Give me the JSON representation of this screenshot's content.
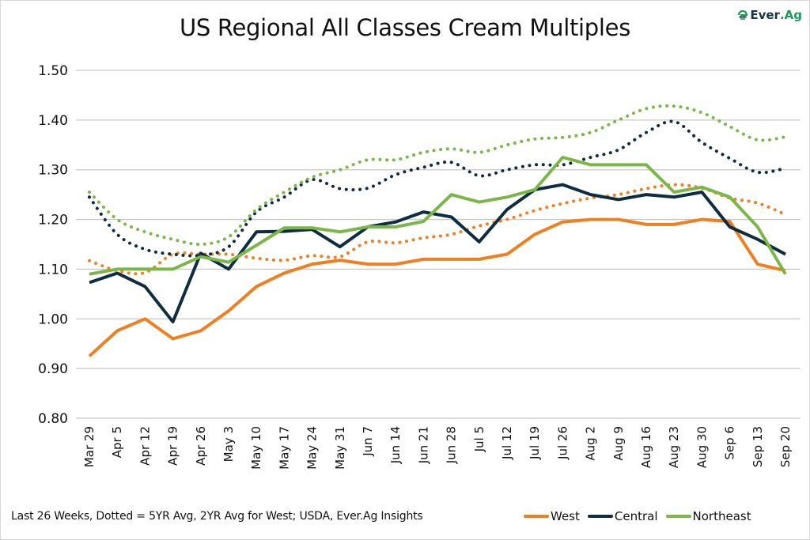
{
  "header": {
    "title": "US Regional All Classes Cream Multiples",
    "logo": {
      "prefix": "Ever",
      "suffix": ".Ag",
      "icon": "ever-ag-leaf-icon"
    }
  },
  "footer": {
    "note": "Last 26 Weeks, Dotted = 5YR Avg, 2YR Avg for West; USDA, Ever.Ag Insights"
  },
  "colors": {
    "west": "#F07F22",
    "central": "#0F2D40",
    "northeast": "#7AB648",
    "grid": "#c8c8c8",
    "logo_dark": "#1a3446",
    "logo_green": "#1e9a5a"
  },
  "chart_data": {
    "type": "line",
    "title": "US Regional All Classes Cream Multiples",
    "xlabel": "",
    "ylabel": "",
    "ylim": [
      0.8,
      1.5
    ],
    "yticks": [
      "1.50",
      "1.40",
      "1.30",
      "1.20",
      "1.10",
      "1.00",
      "0.90",
      "0.80"
    ],
    "ytick_values": [
      1.5,
      1.4,
      1.3,
      1.2,
      1.1,
      1.0,
      0.9,
      0.8
    ],
    "grid": true,
    "legend_position": "bottom-right",
    "categories": [
      "Mar 29",
      "Apr 5",
      "Apr 12",
      "Apr 19",
      "Apr 26",
      "May 3",
      "May 10",
      "May 17",
      "May 24",
      "May 31",
      "Jun 7",
      "Jun 14",
      "Jun 21",
      "Jun 28",
      "Jul 5",
      "Jul 12",
      "Jul 19",
      "Jul 26",
      "Aug 2",
      "Aug 9",
      "Aug 16",
      "Aug 23",
      "Aug 30",
      "Sep 6",
      "Sep 13",
      "Sep 20"
    ],
    "series": [
      {
        "name": "West",
        "key": "west",
        "style": "solid",
        "in_legend": true,
        "values": [
          0.925,
          0.976,
          1.0,
          0.96,
          0.976,
          1.016,
          1.065,
          1.092,
          1.11,
          1.118,
          1.11,
          1.11,
          1.12,
          1.12,
          1.12,
          1.13,
          1.17,
          1.195,
          1.2,
          1.2,
          1.19,
          1.19,
          1.2,
          1.196,
          1.11,
          1.097
        ]
      },
      {
        "name": "Central",
        "key": "central",
        "style": "solid",
        "in_legend": true,
        "values": [
          1.073,
          1.092,
          1.065,
          0.994,
          1.132,
          1.1,
          1.175,
          1.176,
          1.18,
          1.145,
          1.185,
          1.195,
          1.215,
          1.205,
          1.155,
          1.22,
          1.26,
          1.27,
          1.25,
          1.24,
          1.25,
          1.245,
          1.255,
          1.185,
          1.16,
          1.13
        ]
      },
      {
        "name": "Northeast",
        "key": "northeast",
        "style": "solid",
        "in_legend": true,
        "values": [
          1.09,
          1.1,
          1.1,
          1.1,
          1.125,
          1.114,
          1.148,
          1.183,
          1.183,
          1.175,
          1.185,
          1.185,
          1.196,
          1.25,
          1.235,
          1.245,
          1.26,
          1.325,
          1.31,
          1.31,
          1.31,
          1.255,
          1.265,
          1.245,
          1.185,
          1.09
        ]
      },
      {
        "name": "West Avg (2YR)",
        "key": "west",
        "style": "dotted",
        "in_legend": false,
        "values": [
          1.117,
          1.097,
          1.093,
          1.13,
          1.13,
          1.13,
          1.122,
          1.118,
          1.127,
          1.125,
          1.155,
          1.153,
          1.163,
          1.17,
          1.187,
          1.2,
          1.218,
          1.232,
          1.243,
          1.25,
          1.262,
          1.27,
          1.263,
          1.243,
          1.233,
          1.21
        ]
      },
      {
        "name": "Central Avg (5YR)",
        "key": "central",
        "style": "dotted",
        "in_legend": false,
        "values": [
          1.245,
          1.17,
          1.14,
          1.13,
          1.128,
          1.145,
          1.215,
          1.245,
          1.28,
          1.262,
          1.263,
          1.29,
          1.305,
          1.315,
          1.288,
          1.3,
          1.31,
          1.31,
          1.325,
          1.34,
          1.375,
          1.397,
          1.355,
          1.323,
          1.295,
          1.303
        ]
      },
      {
        "name": "Northeast Avg (5YR)",
        "key": "northeast",
        "style": "dotted",
        "in_legend": false,
        "values": [
          1.255,
          1.2,
          1.175,
          1.16,
          1.15,
          1.165,
          1.22,
          1.255,
          1.285,
          1.3,
          1.32,
          1.32,
          1.335,
          1.342,
          1.335,
          1.35,
          1.362,
          1.365,
          1.375,
          1.4,
          1.423,
          1.428,
          1.415,
          1.387,
          1.36,
          1.366
        ]
      }
    ]
  },
  "legend": [
    {
      "label": "West",
      "key": "west"
    },
    {
      "label": "Central",
      "key": "central"
    },
    {
      "label": "Northeast",
      "key": "northeast"
    }
  ]
}
